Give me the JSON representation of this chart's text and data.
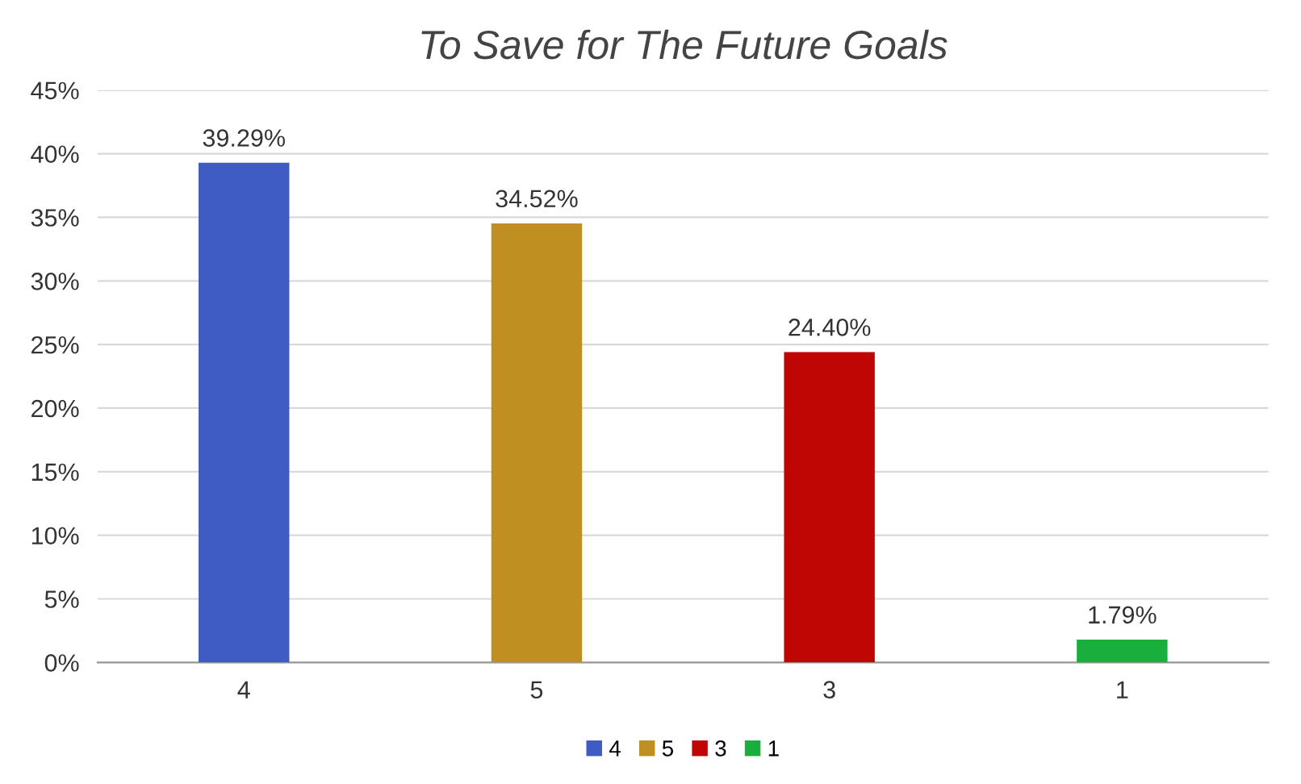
{
  "chart_data": {
    "type": "bar",
    "title": "To Save for The Future Goals",
    "categories": [
      "4",
      "5",
      "3",
      "1"
    ],
    "series": [
      {
        "name": "4",
        "color": "#3f5bc4",
        "values": [
          39.29,
          null,
          null,
          null
        ],
        "value_labels": [
          "39.29%",
          null,
          null,
          null
        ]
      },
      {
        "name": "5",
        "color": "#bf8f22",
        "values": [
          null,
          34.52,
          null,
          null
        ],
        "value_labels": [
          null,
          "34.52%",
          null,
          null
        ]
      },
      {
        "name": "3",
        "color": "#c00505",
        "values": [
          null,
          null,
          24.4,
          null
        ],
        "value_labels": [
          null,
          null,
          "24.40%",
          null
        ]
      },
      {
        "name": "1",
        "color": "#1aae3c",
        "values": [
          null,
          null,
          null,
          1.79
        ],
        "value_labels": [
          null,
          null,
          null,
          "1.79%"
        ]
      }
    ],
    "ylim": [
      0,
      45
    ],
    "yticks": [
      {
        "value": 0,
        "label": "0%"
      },
      {
        "value": 5,
        "label": "5%"
      },
      {
        "value": 10,
        "label": "10%"
      },
      {
        "value": 15,
        "label": "15%"
      },
      {
        "value": 20,
        "label": "20%"
      },
      {
        "value": 25,
        "label": "25%"
      },
      {
        "value": 30,
        "label": "30%"
      },
      {
        "value": 35,
        "label": "35%"
      },
      {
        "value": 40,
        "label": "40%"
      },
      {
        "value": 45,
        "label": "45%"
      }
    ],
    "grid": "y",
    "legend": "bottom"
  }
}
